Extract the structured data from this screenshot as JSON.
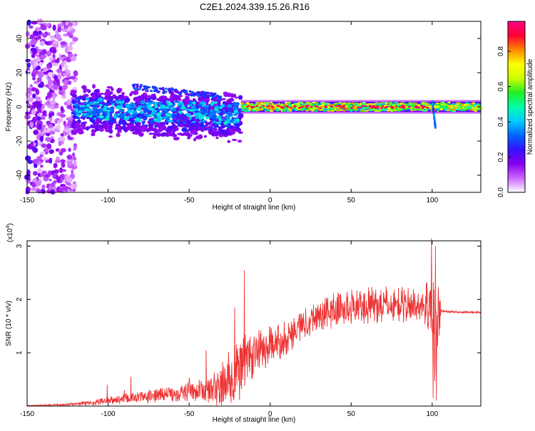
{
  "page": {
    "title": "C2E1.2024.339.15.26.R16"
  },
  "chart_data": [
    {
      "type": "heatmap",
      "title": "C2E1.2024.339.15.26.R16",
      "xlabel": "Height of straight line (km)",
      "ylabel": "Frequency (Hz)",
      "xlim": [
        -150,
        130
      ],
      "ylim": [
        -50,
        50
      ],
      "x_ticks": [
        -150,
        -100,
        -50,
        0,
        50,
        100
      ],
      "y_ticks": [
        -40,
        -20,
        0,
        20,
        40
      ],
      "colorbar": {
        "label": "Normalized spectral amplitude",
        "range": [
          0,
          0.97
        ],
        "ticks": [
          0.0,
          0.2,
          0.4,
          0.6,
          0.8
        ],
        "tick_labels": [
          "0.0",
          "0.2",
          "0.4",
          "0.6",
          "0.8"
        ],
        "colors": [
          "#ffffff",
          "#cc66ff",
          "#8800ee",
          "#3311ff",
          "#0066ff",
          "#00ccff",
          "#00ffaa",
          "#22ee22",
          "#ccff00",
          "#ffff00",
          "#ff8800",
          "#ff0033",
          "#ff0088"
        ]
      },
      "features": [
        {
          "x_range": [
            -150,
            -122
          ],
          "description": "scattered low-amplitude noise across all frequencies"
        },
        {
          "x_range": [
            -122,
            -18
          ],
          "center_freq_hz": 0,
          "freq_spread_hz": 15,
          "amplitude": 0.35
        },
        {
          "x_range": [
            -18,
            130
          ],
          "center_freq_hz": 0,
          "freq_spread_hz": 3,
          "amplitude": 0.85
        },
        {
          "x": 100,
          "description": "spike to about -12 Hz"
        }
      ]
    },
    {
      "type": "line",
      "xlabel": "Height of straight line (km)",
      "ylabel": "SNR (10 * v/v)",
      "y_multiplier": "(x10",
      "y_multiplier_exp": "4",
      "y_multiplier_close": ")",
      "xlim": [
        -150,
        130
      ],
      "ylim": [
        0,
        3.1
      ],
      "x_ticks": [
        -150,
        -100,
        -50,
        0,
        50,
        100
      ],
      "y_ticks": [
        1,
        2,
        3
      ],
      "series": [
        {
          "color": "#ee3333",
          "envelope": {
            "x": [
              -150,
              -130,
              -110,
              -100,
              -90,
              -80,
              -70,
              -60,
              -50,
              -40,
              -30,
              -22,
              -18,
              -16,
              -12,
              -5,
              0,
              10,
              20,
              30,
              40,
              50,
              60,
              70,
              80,
              90,
              97,
              100,
              102,
              104,
              106,
              110,
              120,
              130
            ],
            "y": [
              0.01,
              0.02,
              0.06,
              0.1,
              0.13,
              0.16,
              0.2,
              0.24,
              0.27,
              0.29,
              0.38,
              0.55,
              0.75,
              0.9,
              0.95,
              1.05,
              1.1,
              1.3,
              1.55,
              1.7,
              1.8,
              1.85,
              1.88,
              1.9,
              1.9,
              1.9,
              1.9,
              1.9,
              1.2,
              1.8,
              1.78,
              1.77,
              1.76,
              1.76
            ]
          },
          "noise_amplitude": {
            "x": [
              -150,
              -120,
              -100,
              -80,
              -60,
              -40,
              -30,
              -22,
              -16,
              -10,
              0,
              20,
              40,
              60,
              80,
              95,
              100,
              104,
              106,
              130
            ],
            "y": [
              0.005,
              0.03,
              0.08,
              0.12,
              0.16,
              0.22,
              0.45,
              0.7,
              0.55,
              0.5,
              0.4,
              0.3,
              0.35,
              0.35,
              0.35,
              0.3,
              1.1,
              0.8,
              0.02,
              0.02
            ]
          },
          "peaks": [
            {
              "x": -100.5,
              "y": 0.4
            },
            {
              "x": -90,
              "y": 0.3
            },
            {
              "x": -86,
              "y": 0.55
            },
            {
              "x": -50,
              "y": 0.53
            },
            {
              "x": -39.5,
              "y": 1.05
            },
            {
              "x": -22,
              "y": 1.85
            },
            {
              "x": -16,
              "y": 2.55
            },
            {
              "x": 99.5,
              "y": 3.15
            },
            {
              "x": 100.5,
              "y": 0.15
            },
            {
              "x": 102,
              "y": 3.0
            },
            {
              "x": 102.5,
              "y": 0.1
            }
          ],
          "samples": 1400
        }
      ]
    }
  ]
}
